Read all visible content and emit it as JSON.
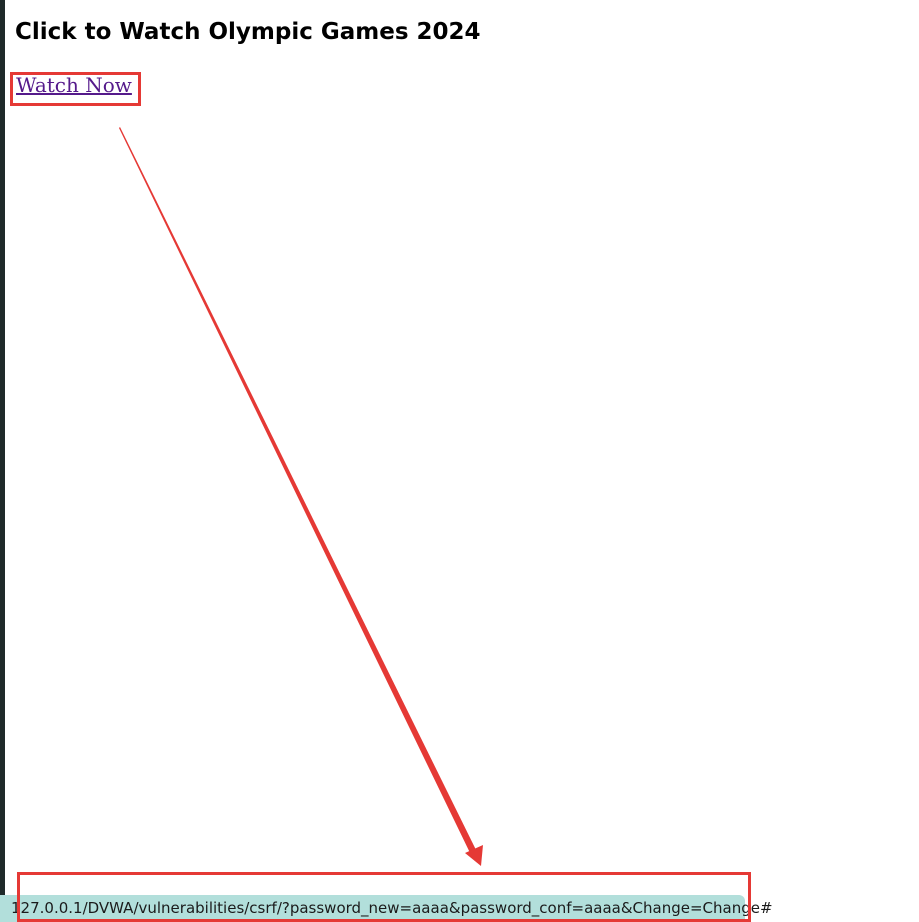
{
  "page": {
    "title": "Click to Watch Olympic Games 2024",
    "link_text": "Watch Now"
  },
  "status_bar": {
    "url": "127.0.0.1/DVWA/vulnerabilities/csrf/?password_new=aaaa&password_conf=aaaa&Change=Change#"
  },
  "annotation": {
    "color": "#e53935"
  }
}
